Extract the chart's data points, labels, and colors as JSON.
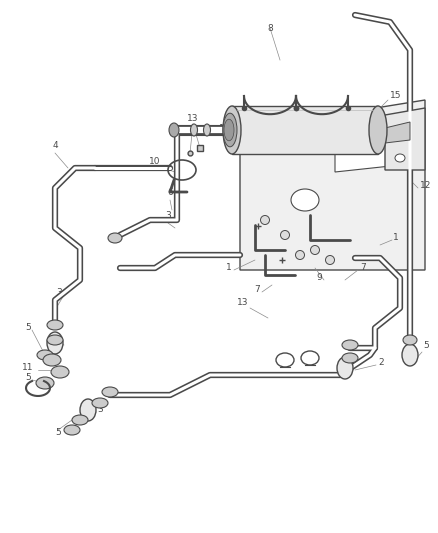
{
  "bg_color": "#ffffff",
  "lc": "#4a4a4a",
  "lc_light": "#8a8a8a",
  "lc_mid": "#666666",
  "fig_width": 4.39,
  "fig_height": 5.33,
  "dpi": 100,
  "label_fs": 6.5,
  "lw_pipe": 1.4,
  "lw_part": 1.0,
  "lw_leader": 0.5,
  "pipe_color": "#555555",
  "fill_light": "#e8e8e8",
  "fill_mid": "#cccccc",
  "fill_dark": "#aaaaaa"
}
